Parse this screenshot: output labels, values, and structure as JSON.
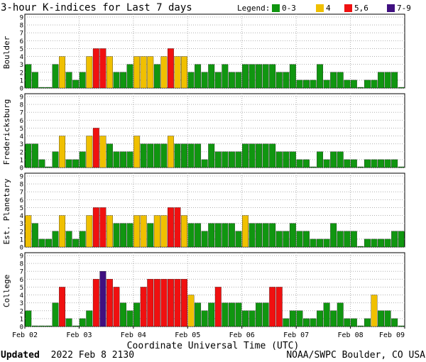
{
  "title": "3-hour K-indices for Last 7 days",
  "legend": {
    "label": "Legend:",
    "entries": [
      {
        "text": "0-3",
        "color": "#109610"
      },
      {
        "text": "4",
        "color": "#f0c000"
      },
      {
        "text": "5,6",
        "color": "#f01010"
      },
      {
        "text": "7-9",
        "color": "#401080"
      }
    ]
  },
  "xlabel": "Coordinate Universal Time (UTC)",
  "footer_left_bold": "Updated",
  "footer_left": "2022 Feb  8 2130",
  "footer_right": "NOAA/SWPC Boulder, CO USA",
  "chart_data": {
    "type": "bar",
    "x_ticks": [
      "Feb 02",
      "Feb 03",
      "Feb 04",
      "Feb 05",
      "Feb 06",
      "Feb 07",
      "Feb 08",
      "Feb 09"
    ],
    "ylim": [
      0,
      9
    ],
    "y_ticks": [
      0,
      1,
      2,
      3,
      4,
      5,
      6,
      7,
      8,
      9
    ],
    "grid": true,
    "bins_per_panel": 56,
    "color_scale": [
      {
        "range": [
          0,
          3
        ],
        "color": "#109610"
      },
      {
        "range": [
          4,
          4
        ],
        "color": "#f0c000"
      },
      {
        "range": [
          5,
          6
        ],
        "color": "#f01010"
      },
      {
        "range": [
          7,
          9
        ],
        "color": "#401080"
      }
    ],
    "panels": [
      {
        "name": "Boulder",
        "values": [
          3,
          2,
          0,
          0,
          3,
          4,
          2,
          1,
          2,
          4,
          5,
          5,
          4,
          2,
          2,
          3,
          4,
          4,
          4,
          3,
          4,
          5,
          4,
          4,
          2,
          3,
          2,
          3,
          2,
          3,
          2,
          2,
          3,
          3,
          3,
          3,
          3,
          2,
          2,
          3,
          1,
          1,
          1,
          3,
          1,
          2,
          2,
          1,
          1,
          0,
          1,
          1,
          2,
          2,
          2,
          0
        ]
      },
      {
        "name": "Fredericksburg",
        "values": [
          3,
          3,
          1,
          0,
          2,
          4,
          1,
          1,
          2,
          4,
          5,
          4,
          3,
          2,
          2,
          2,
          4,
          3,
          3,
          3,
          3,
          4,
          3,
          3,
          3,
          3,
          1,
          3,
          2,
          2,
          2,
          2,
          3,
          3,
          3,
          3,
          3,
          2,
          2,
          2,
          1,
          1,
          0,
          2,
          1,
          2,
          2,
          1,
          1,
          0,
          1,
          1,
          1,
          1,
          1,
          0
        ]
      },
      {
        "name": "Est. Planetary",
        "values": [
          4,
          3,
          1,
          1,
          2,
          4,
          2,
          1,
          2,
          4,
          5,
          5,
          4,
          3,
          3,
          3,
          4,
          4,
          3,
          4,
          4,
          5,
          5,
          4,
          3,
          3,
          2,
          3,
          3,
          3,
          3,
          2,
          4,
          3,
          3,
          3,
          3,
          2,
          2,
          3,
          2,
          2,
          1,
          1,
          1,
          3,
          2,
          2,
          2,
          0,
          1,
          1,
          1,
          1,
          2,
          2
        ]
      },
      {
        "name": "College",
        "values": [
          2,
          0,
          0,
          0,
          3,
          5,
          1,
          0,
          1,
          2,
          6,
          7,
          6,
          5,
          3,
          2,
          3,
          5,
          6,
          6,
          6,
          6,
          6,
          6,
          4,
          3,
          2,
          3,
          5,
          3,
          3,
          3,
          2,
          2,
          3,
          3,
          5,
          5,
          1,
          2,
          2,
          1,
          1,
          2,
          3,
          2,
          3,
          1,
          1,
          0,
          1,
          4,
          2,
          2,
          1,
          0
        ]
      }
    ]
  }
}
